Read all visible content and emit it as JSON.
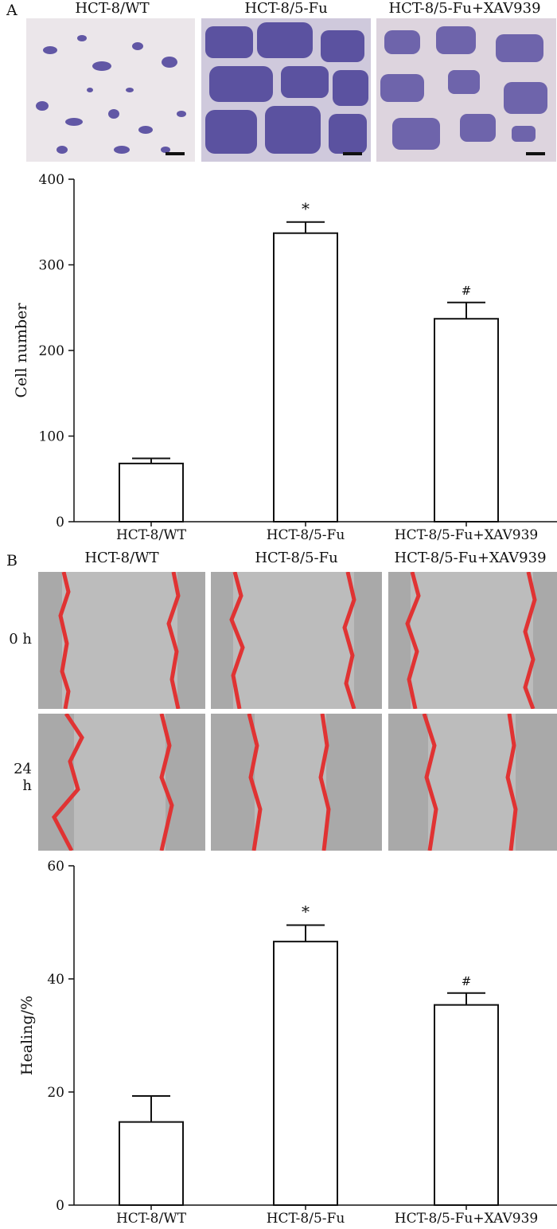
{
  "panel_a": {
    "letter": "A",
    "titles": [
      "HCT-8/WT",
      "HCT-8/5-Fu",
      "HCT-8/5-Fu+XAV939"
    ]
  },
  "panel_b": {
    "letter": "B",
    "titles": [
      "HCT-8/WT",
      "HCT-8/5-Fu",
      "HCT-8/5-Fu+XAV939"
    ],
    "rows": [
      "0 h",
      "24 h"
    ]
  },
  "colors": {
    "bar_fill": "#ffffff",
    "bar_stroke": "#111111",
    "stain": "#4a3f9a",
    "wound_line": "#e03333",
    "field_bg": "#bcbcbc"
  },
  "chart_data": [
    {
      "type": "bar",
      "categories": [
        "HCT-8/WT",
        "HCT-8/5-Fu",
        "HCT-8/5-Fu+XAV939"
      ],
      "values": [
        68,
        337,
        237
      ],
      "errors": [
        6,
        13,
        19
      ],
      "annotations": [
        "",
        "*",
        "#"
      ],
      "ylabel": "Cell number",
      "ylim": [
        0,
        400
      ],
      "yticks": [
        0,
        100,
        200,
        300,
        400
      ],
      "grid": false
    },
    {
      "type": "bar",
      "categories": [
        "HCT-8/WT",
        "HCT-8/5-Fu",
        "HCT-8/5-Fu+XAV939"
      ],
      "values": [
        14.7,
        46.6,
        35.4
      ],
      "errors": [
        4.6,
        2.9,
        2.1
      ],
      "annotations": [
        "",
        "*",
        "#"
      ],
      "ylabel": "Healing/%",
      "ylim": [
        0,
        60
      ],
      "yticks": [
        0,
        20,
        40,
        60
      ],
      "grid": false
    }
  ]
}
